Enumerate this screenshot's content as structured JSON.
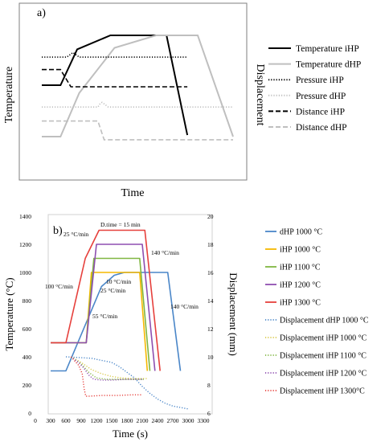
{
  "chart_data": [
    {
      "panel_label": "a)",
      "type": "line",
      "xlabel": "Time",
      "ylabel_left": "Temperature",
      "ylabel_right": "Displacement",
      "x_ticks": "none",
      "y_ticks": "none",
      "grid": false,
      "legend_position": "right",
      "series": [
        {
          "name": "Temperature iHP",
          "color": "#000000",
          "dash": "solid",
          "x": [
            0,
            9,
            17,
            33,
            51,
            55,
            60,
            70
          ],
          "y": [
            0.33,
            0.33,
            0.56,
            0.65,
            0.65,
            0.65,
            0.65,
            0.01
          ]
        },
        {
          "name": "Temperature dHP",
          "color": "#bfbfbf",
          "dash": "solid",
          "x": [
            0,
            9,
            18,
            35,
            55,
            75,
            92
          ],
          "y": [
            0.0,
            0.0,
            0.28,
            0.57,
            0.65,
            0.65,
            0.0
          ]
        },
        {
          "name": "Pressure iHP",
          "color": "#000000",
          "dash": "dotted",
          "x": [
            0,
            12,
            13,
            14,
            15,
            16,
            17,
            18,
            70
          ],
          "y": [
            0.51,
            0.51,
            0.52,
            0.53,
            0.54,
            0.53,
            0.52,
            0.51,
            0.51
          ]
        },
        {
          "name": "Pressure dHP",
          "color": "#bfbfbf",
          "dash": "dotted",
          "x": [
            0,
            27,
            28,
            29,
            30,
            31,
            32,
            92
          ],
          "y": [
            0.19,
            0.19,
            0.21,
            0.22,
            0.21,
            0.2,
            0.19,
            0.19
          ]
        },
        {
          "name": "Distance iHP",
          "color": "#000000",
          "dash": "dashed",
          "x": [
            0,
            9,
            14,
            70
          ],
          "y": [
            0.43,
            0.43,
            0.32,
            0.32
          ]
        },
        {
          "name": "Distance dHP",
          "color": "#bfbfbf",
          "dash": "dashed",
          "x": [
            0,
            9,
            27,
            30,
            92
          ],
          "y": [
            0.1,
            0.1,
            0.1,
            -0.02,
            -0.02
          ]
        }
      ]
    },
    {
      "panel_label": "b)",
      "type": "line",
      "xlabel": "Time (s)",
      "ylabel": "Temperature (°C)",
      "ylabel_right": "Displacement (mm)",
      "xlim": [
        0,
        3300
      ],
      "ylim": [
        0,
        1400
      ],
      "ylim_right": [
        6,
        20
      ],
      "x_ticks": [
        0,
        300,
        600,
        900,
        1200,
        1500,
        1800,
        2100,
        2400,
        2700,
        3000,
        3300
      ],
      "y_ticks": [
        0,
        200,
        400,
        600,
        800,
        1000,
        1200,
        1400
      ],
      "y_ticks_right": [
        6,
        8,
        10,
        12,
        14,
        16,
        18,
        20
      ],
      "grid": false,
      "legend_position": "right",
      "annotations": [
        "D.time = 15 min",
        "25 °C/min",
        "100 °C/min",
        "140 °C/min",
        "10 °C/min",
        "25 °C/min",
        "55 °C/min",
        "140 °C/min"
      ],
      "series": [
        {
          "name": "dHP 1000 °C",
          "color": "#4a86c8",
          "dash": "solid",
          "axis": "left",
          "x": [
            300,
            600,
            1300,
            1550,
            1750,
            2600,
            2850
          ],
          "y": [
            300,
            300,
            900,
            980,
            1000,
            1000,
            300
          ]
        },
        {
          "name": "iHP 1000 °C",
          "color": "#f5b800",
          "dash": "solid",
          "axis": "left",
          "x": [
            300,
            1000,
            1100,
            2050,
            2200
          ],
          "y": [
            500,
            500,
            1000,
            1000,
            300
          ]
        },
        {
          "name": "iHP 1100 °C",
          "color": "#80b642",
          "dash": "solid",
          "axis": "left",
          "x": [
            300,
            1000,
            1150,
            2050,
            2250
          ],
          "y": [
            500,
            500,
            1100,
            1100,
            300
          ]
        },
        {
          "name": "iHP 1200 °C",
          "color": "#8e4fb0",
          "dash": "solid",
          "axis": "left",
          "x": [
            300,
            1000,
            1200,
            2100,
            2350
          ],
          "y": [
            500,
            500,
            1200,
            1200,
            300
          ]
        },
        {
          "name": "iHP 1300 °C",
          "color": "#e6403c",
          "dash": "solid",
          "axis": "left",
          "x": [
            300,
            600,
            980,
            1250,
            2150,
            2450
          ],
          "y": [
            500,
            500,
            1100,
            1300,
            1300,
            300
          ]
        },
        {
          "name": "Displacement dHP 1000 °C",
          "color": "#4a86c8",
          "dash": "dotted",
          "axis": "right",
          "x": [
            600,
            1100,
            1500,
            1650,
            1800,
            1950,
            2100,
            2250,
            2400,
            2550,
            2700,
            3000
          ],
          "y": [
            10.0,
            9.9,
            9.6,
            9.3,
            8.9,
            8.5,
            7.9,
            7.4,
            7.0,
            6.7,
            6.5,
            6.3
          ]
        },
        {
          "name": "Displacement iHP 1000 °C",
          "color": "#d9c94a",
          "dash": "dotted",
          "axis": "right",
          "x": [
            700,
            900,
            1100,
            1300,
            1500,
            1700,
            1900,
            2200
          ],
          "y": [
            10.0,
            9.6,
            9.1,
            8.8,
            8.6,
            8.5,
            8.45,
            8.45
          ]
        },
        {
          "name": "Displacement iHP 1100 °C",
          "color": "#80b642",
          "dash": "dotted",
          "axis": "right",
          "x": [
            700,
            900,
            1050,
            1200,
            1400,
            1600,
            1800,
            2150
          ],
          "y": [
            10.0,
            9.5,
            8.9,
            8.5,
            8.4,
            8.4,
            8.4,
            8.4
          ]
        },
        {
          "name": "Displacement iHP 1200 °C",
          "color": "#8e4fb0",
          "dash": "dotted",
          "axis": "right",
          "x": [
            700,
            850,
            950,
            1050,
            1150,
            1300,
            1500,
            1800,
            2100
          ],
          "y": [
            10.0,
            9.6,
            9.2,
            8.7,
            8.4,
            8.35,
            8.35,
            8.4,
            8.4
          ]
        },
        {
          "name": "Displacement iHP 1300°C",
          "color": "#e6403c",
          "dash": "dotted",
          "axis": "right",
          "x": [
            700,
            850,
            920,
            960,
            990,
            1050,
            1300,
            1600,
            1900,
            2100
          ],
          "y": [
            10.0,
            9.4,
            8.8,
            7.7,
            7.2,
            7.2,
            7.25,
            7.25,
            7.3,
            7.3
          ]
        }
      ]
    }
  ]
}
